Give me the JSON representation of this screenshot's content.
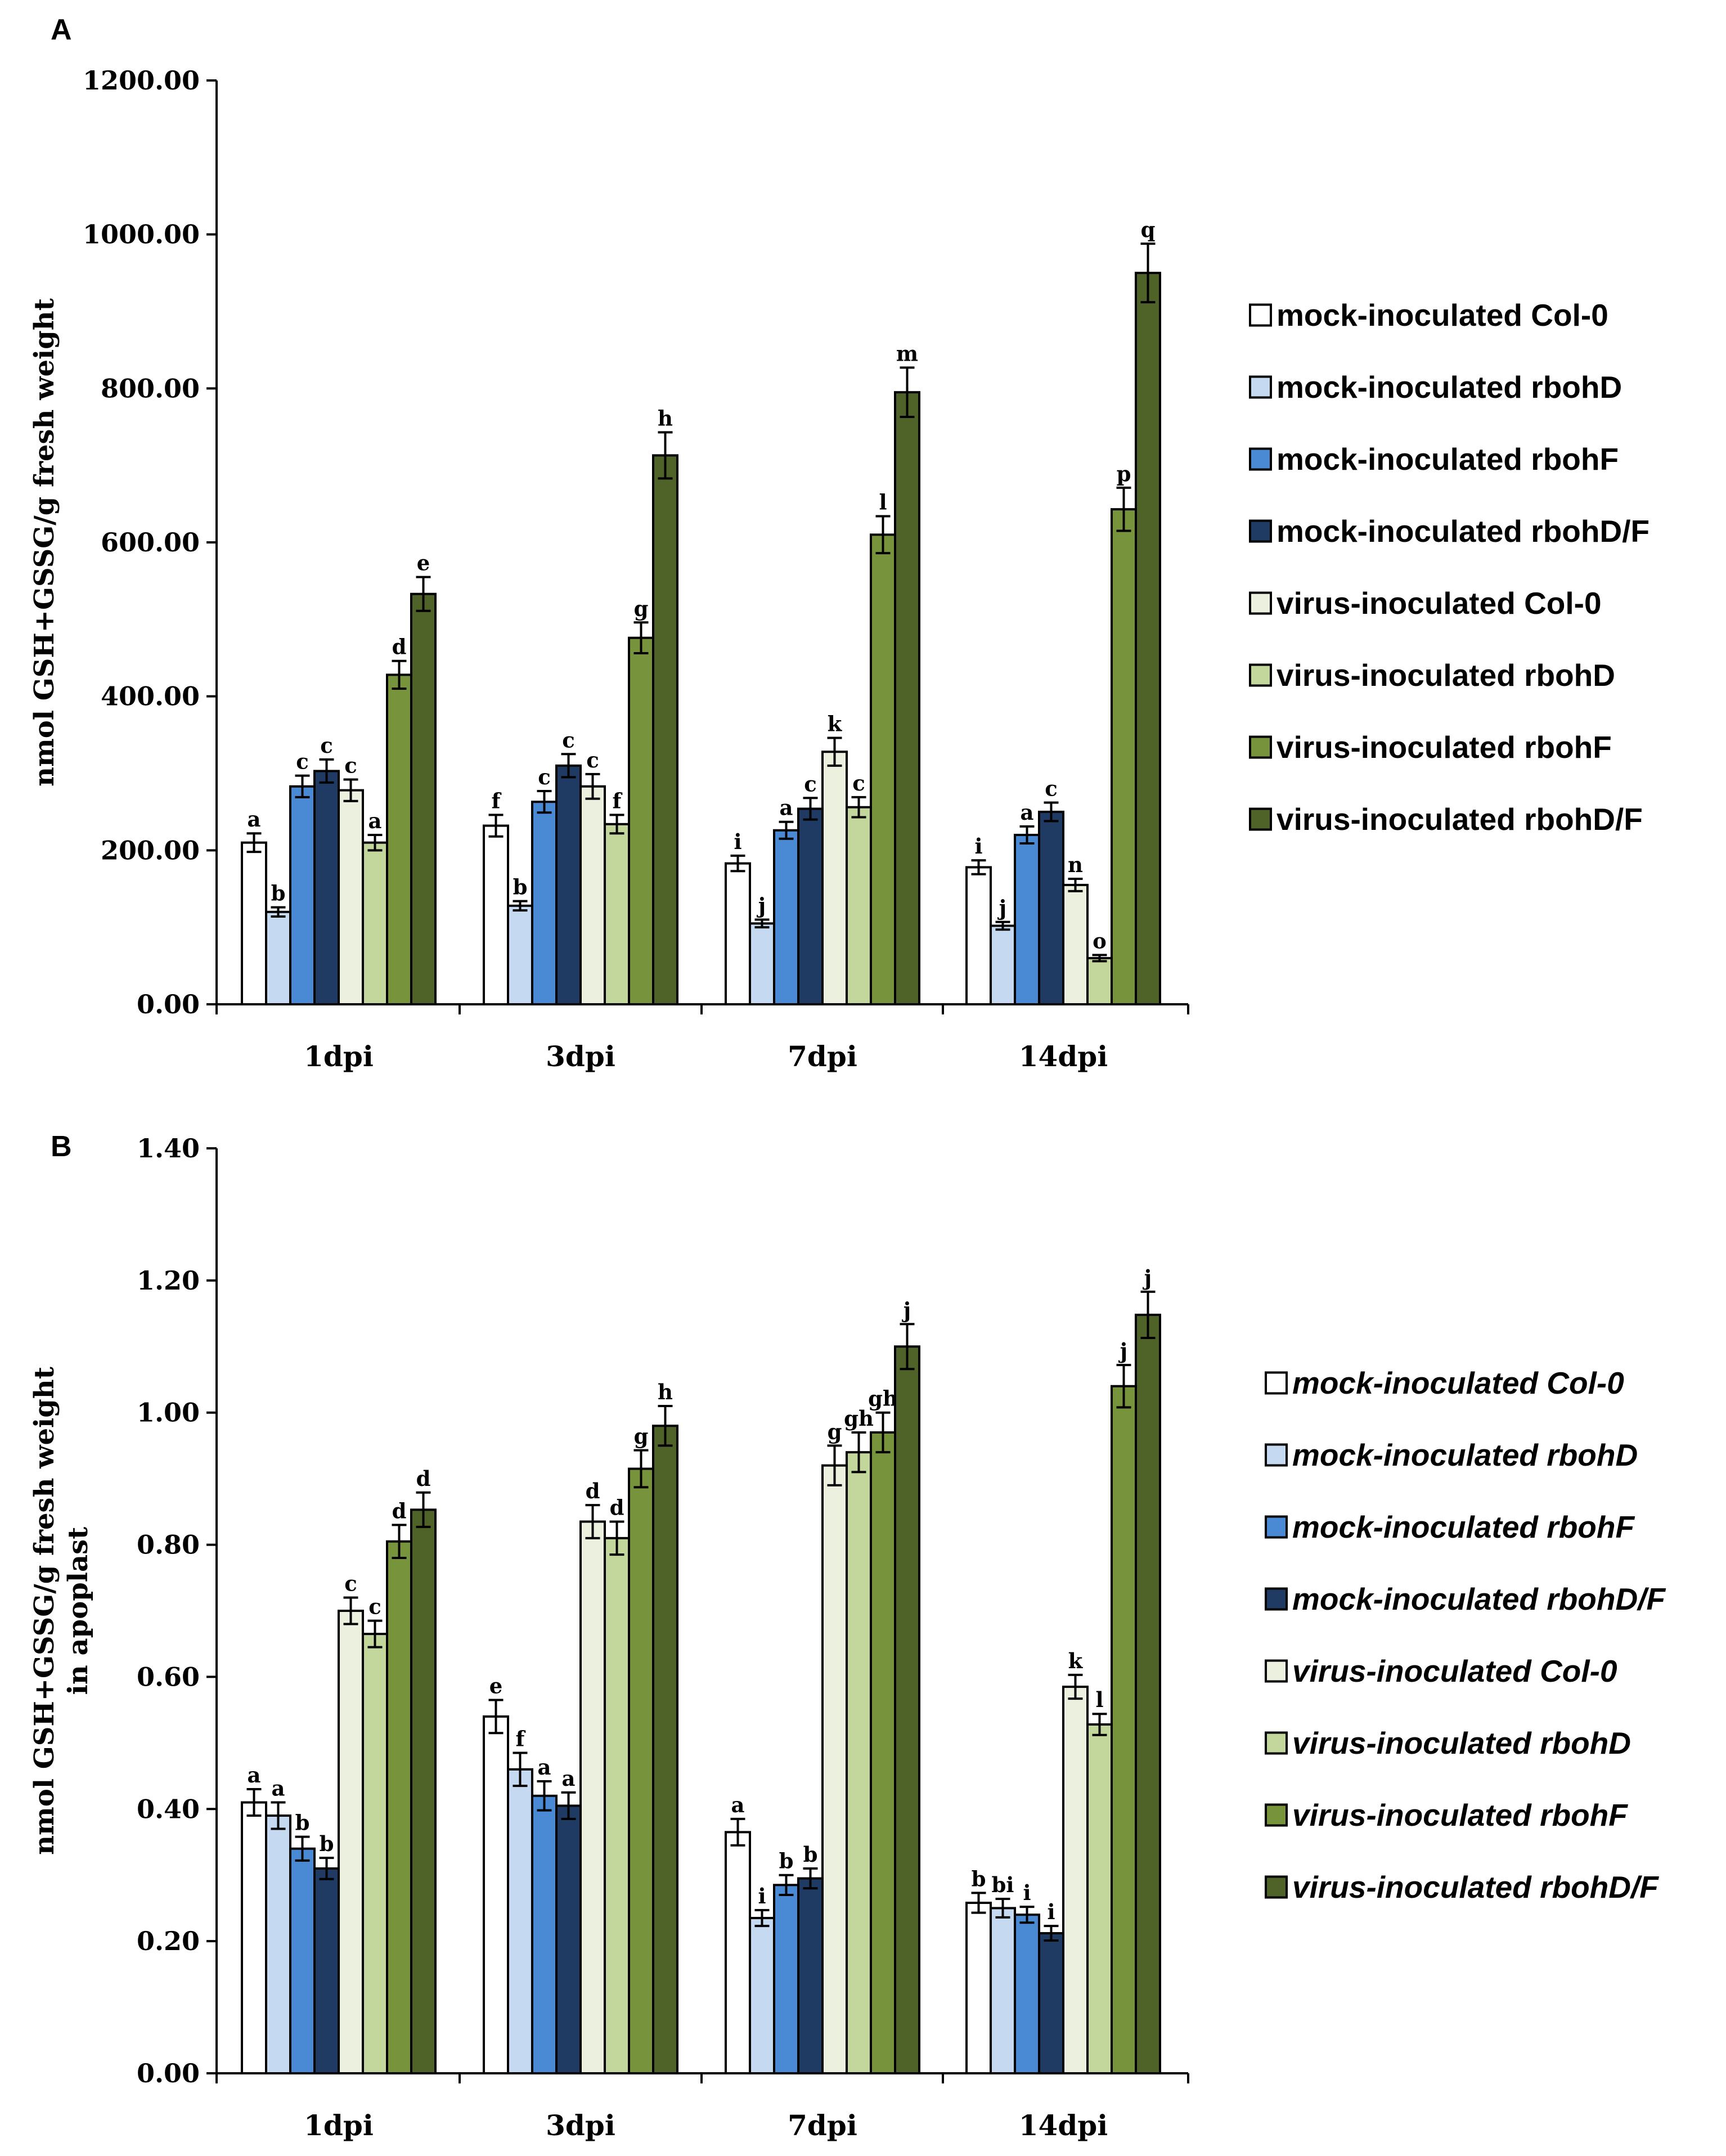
{
  "series_colors": [
    "#ffffff",
    "#c5d9f1",
    "#4a8ad4",
    "#1f3b63",
    "#ebf1de",
    "#c3d69b",
    "#77933c",
    "#4f6228"
  ],
  "chart_data": [
    {
      "panel": "A",
      "type": "bar",
      "ylabel": "nmol GSH+GSSG/g  fresh weight",
      "ylim": [
        0,
        1200
      ],
      "yticks": [
        0,
        200,
        400,
        600,
        800,
        1000,
        1200
      ],
      "ytick_labels": [
        "0.00",
        "200.00",
        "400.00",
        "600.00",
        "800.00",
        "1000.00",
        "1200.00"
      ],
      "categories": [
        "1dpi",
        "3dpi",
        "7dpi",
        "14dpi"
      ],
      "legend_italic": false,
      "series": [
        {
          "name": "mock-inoculated Col-0",
          "values": [
            210,
            232,
            183,
            178
          ],
          "errors": [
            12,
            14,
            10,
            9
          ],
          "letters": [
            "a",
            "f",
            "i",
            "i"
          ]
        },
        {
          "name": "mock-inoculated rbohD",
          "values": [
            120,
            128,
            105,
            102
          ],
          "errors": [
            6,
            6,
            5,
            5
          ],
          "letters": [
            "b",
            "b",
            "j",
            "j"
          ]
        },
        {
          "name": "mock-inoculated rbohF",
          "values": [
            283,
            263,
            226,
            220
          ],
          "errors": [
            14,
            14,
            11,
            11
          ],
          "letters": [
            "c",
            "c",
            "a",
            "a"
          ]
        },
        {
          "name": "mock-inoculated rbohD/F",
          "values": [
            303,
            310,
            254,
            250
          ],
          "errors": [
            15,
            15,
            14,
            12
          ],
          "letters": [
            "c",
            "c",
            "c",
            "c"
          ]
        },
        {
          "name": "virus-inoculated Col-0",
          "values": [
            278,
            283,
            328,
            155
          ],
          "errors": [
            14,
            16,
            18,
            8
          ],
          "letters": [
            "c",
            "c",
            "k",
            "n"
          ]
        },
        {
          "name": "virus-inoculated rbohD",
          "values": [
            210,
            234,
            256,
            60
          ],
          "errors": [
            10,
            12,
            13,
            4
          ],
          "letters": [
            "a",
            "f",
            "c",
            "o"
          ]
        },
        {
          "name": "virus-inoculated rbohF",
          "values": [
            428,
            476,
            610,
            643
          ],
          "errors": [
            18,
            20,
            24,
            28
          ],
          "letters": [
            "d",
            "g",
            "l",
            "p"
          ]
        },
        {
          "name": "virus-inoculated rbohD/F",
          "values": [
            533,
            713,
            795,
            950
          ],
          "errors": [
            22,
            30,
            32,
            38
          ],
          "letters": [
            "e",
            "h",
            "m",
            "q"
          ]
        }
      ]
    },
    {
      "panel": "B",
      "type": "bar",
      "ylabel": "nmol GSH+GSSG/g  fresh weight",
      "ylabel2": "in apoplast",
      "ylim": [
        0,
        1.4
      ],
      "yticks": [
        0,
        0.2,
        0.4,
        0.6,
        0.8,
        1.0,
        1.2,
        1.4
      ],
      "ytick_labels": [
        "0.00",
        "0.20",
        "0.40",
        "0.60",
        "0.80",
        "1.00",
        "1.20",
        "1.40"
      ],
      "categories": [
        "1dpi",
        "3dpi",
        "7dpi",
        "14dpi"
      ],
      "legend_italic": true,
      "series": [
        {
          "name": "mock-inoculated Col-0",
          "values": [
            0.41,
            0.54,
            0.365,
            0.258
          ],
          "errors": [
            0.02,
            0.025,
            0.02,
            0.015
          ],
          "letters": [
            "a",
            "e",
            "a",
            "b"
          ]
        },
        {
          "name": "mock-inoculated rbohD",
          "values": [
            0.39,
            0.46,
            0.235,
            0.25
          ],
          "errors": [
            0.02,
            0.025,
            0.012,
            0.014
          ],
          "letters": [
            "a",
            "f",
            "i",
            "bi"
          ]
        },
        {
          "name": "mock-inoculated rbohF",
          "values": [
            0.34,
            0.42,
            0.285,
            0.24
          ],
          "errors": [
            0.018,
            0.022,
            0.015,
            0.012
          ],
          "letters": [
            "b",
            "a",
            "b",
            "i"
          ]
        },
        {
          "name": "mock-inoculated rbohD/F",
          "values": [
            0.31,
            0.405,
            0.295,
            0.212
          ],
          "errors": [
            0.016,
            0.02,
            0.015,
            0.011
          ],
          "letters": [
            "b",
            "a",
            "b",
            "i"
          ]
        },
        {
          "name": "virus-inoculated Col-0",
          "values": [
            0.7,
            0.835,
            0.92,
            0.585
          ],
          "errors": [
            0.02,
            0.025,
            0.03,
            0.018
          ],
          "letters": [
            "c",
            "d",
            "g",
            "k"
          ]
        },
        {
          "name": "virus-inoculated rbohD",
          "values": [
            0.665,
            0.81,
            0.94,
            0.528
          ],
          "errors": [
            0.02,
            0.025,
            0.03,
            0.016
          ],
          "letters": [
            "c",
            "d",
            "gh",
            "l"
          ]
        },
        {
          "name": "virus-inoculated rbohF",
          "values": [
            0.805,
            0.915,
            0.97,
            1.04
          ],
          "errors": [
            0.025,
            0.028,
            0.03,
            0.032
          ],
          "letters": [
            "d",
            "g",
            "gh",
            "j"
          ]
        },
        {
          "name": "virus-inoculated rbohD/F",
          "values": [
            0.853,
            0.98,
            1.1,
            1.148
          ],
          "errors": [
            0.026,
            0.03,
            0.034,
            0.035
          ],
          "letters": [
            "d",
            "h",
            "j",
            "j"
          ]
        }
      ]
    }
  ]
}
